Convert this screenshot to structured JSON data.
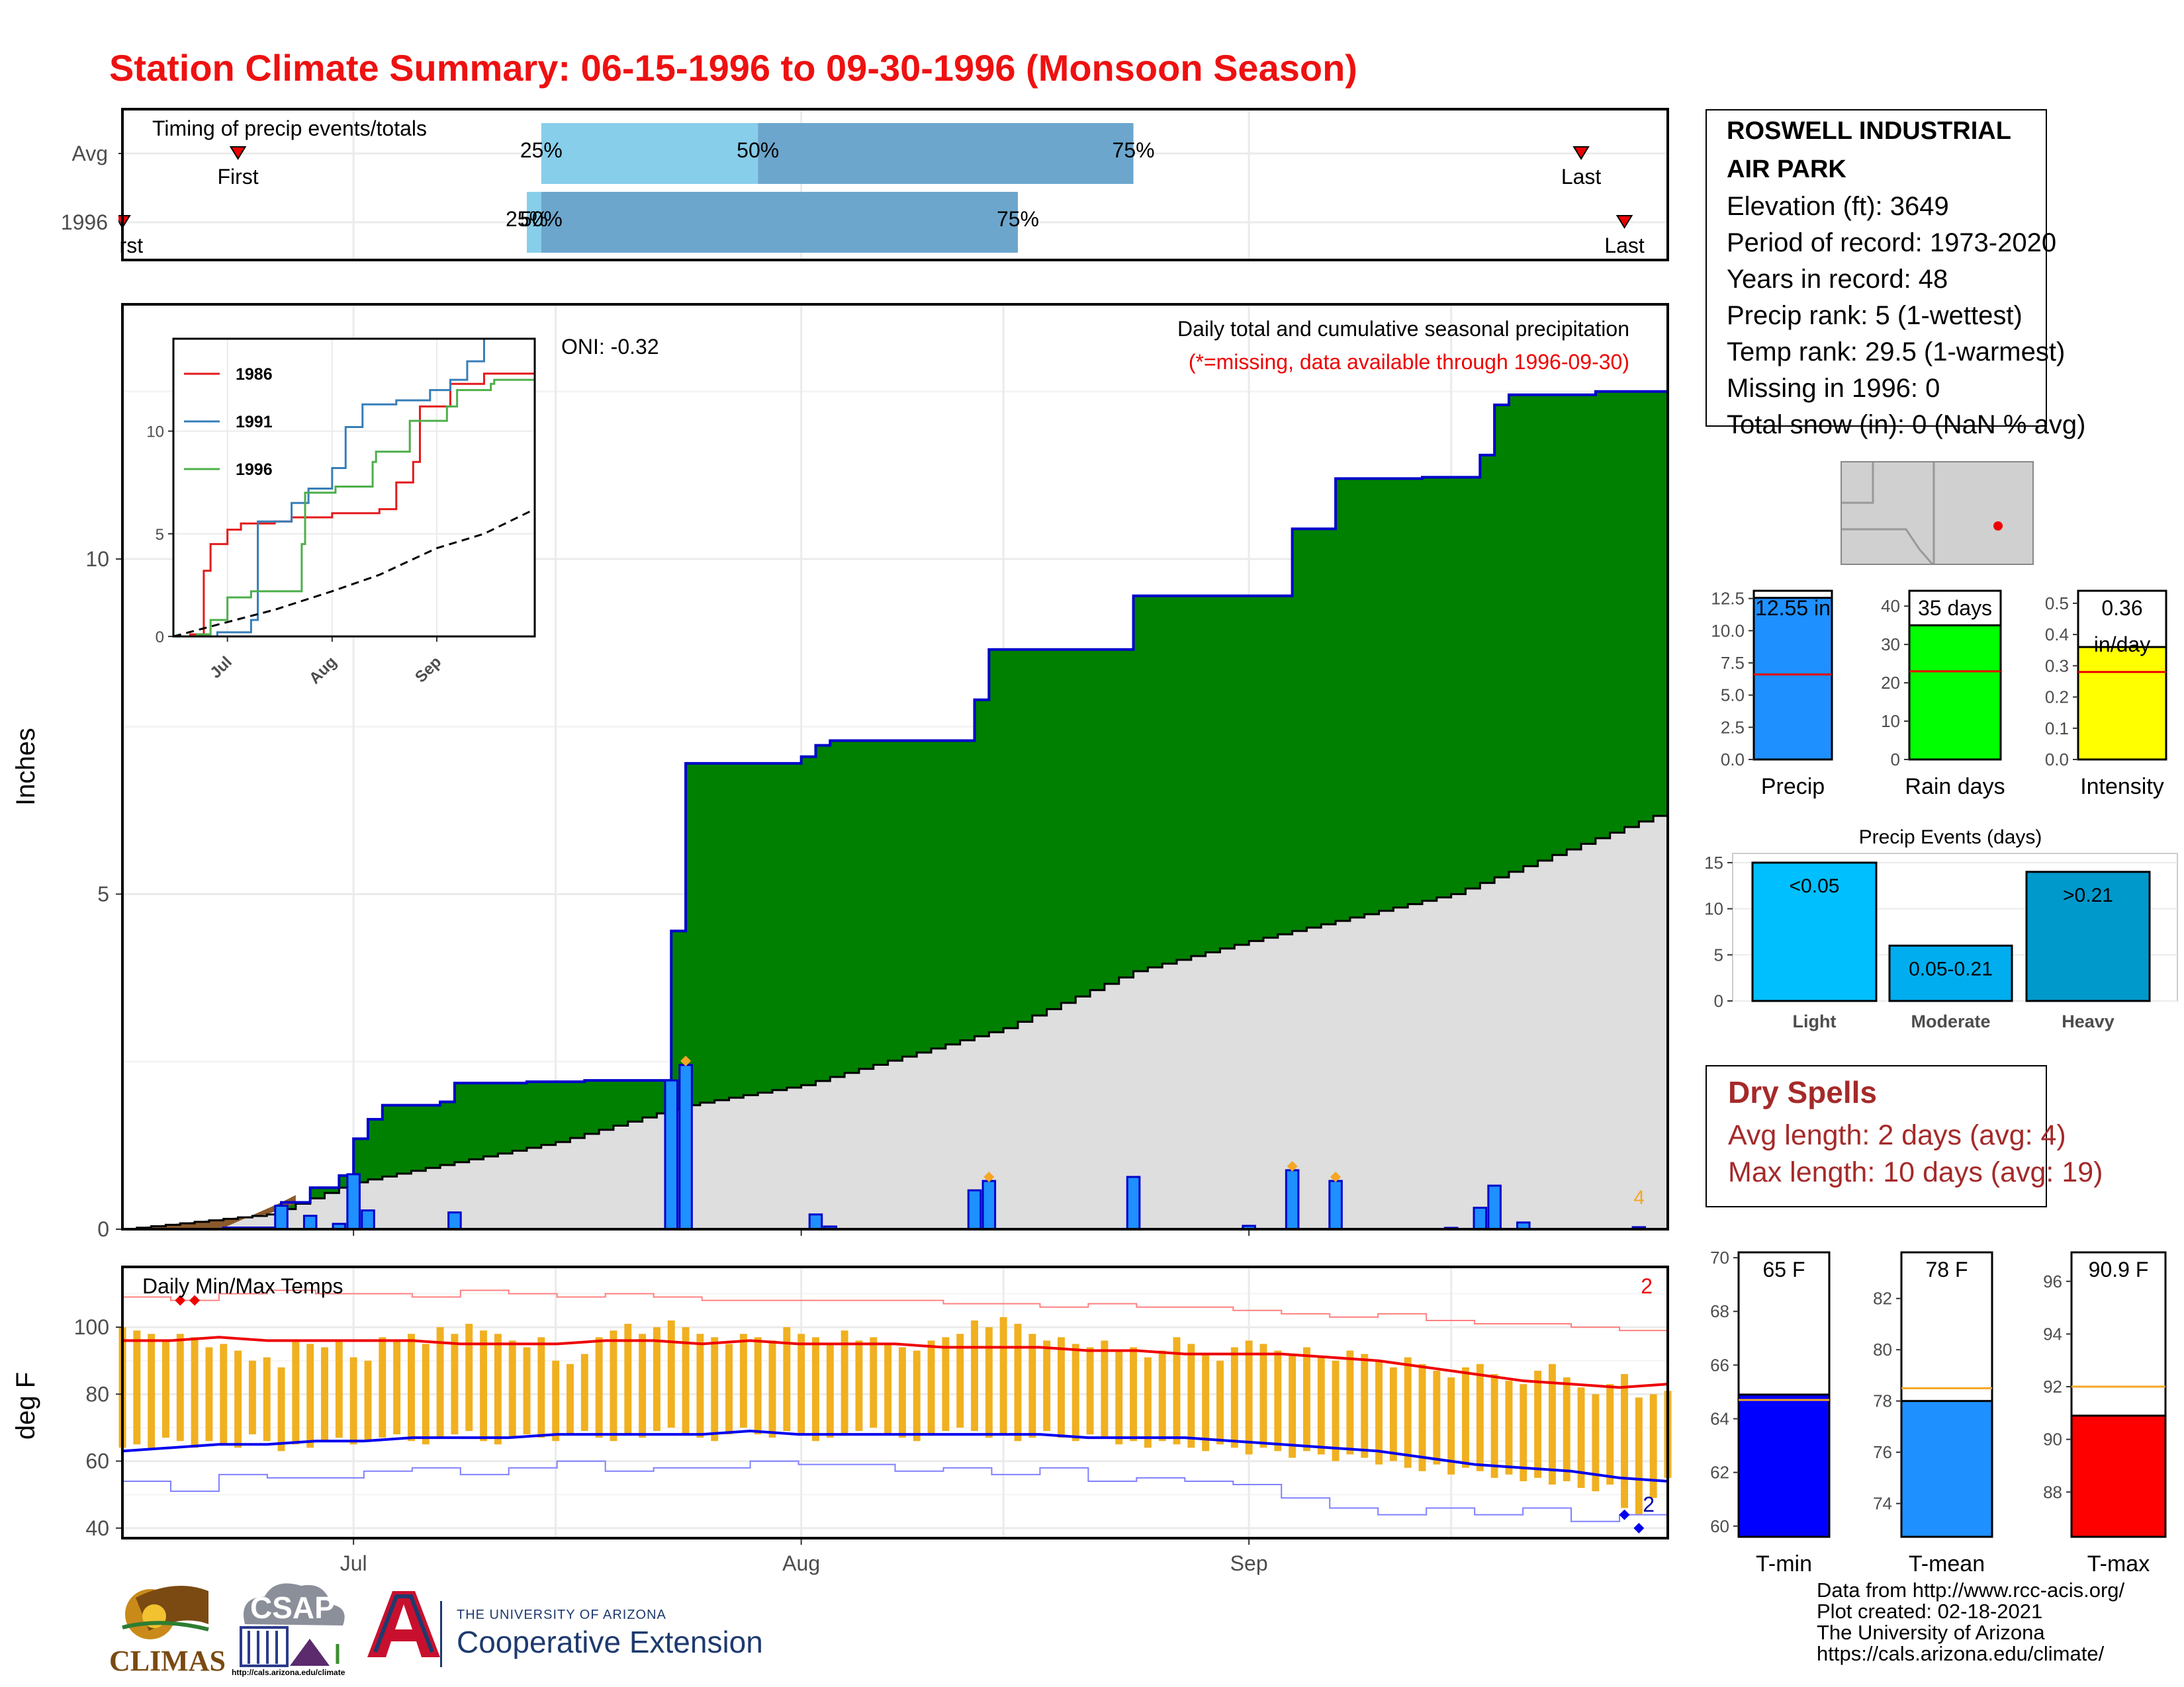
{
  "title": "Station Climate Summary: 06-15-1996 to 09-30-1996 (Monsoon Season)",
  "station": {
    "name": "ROSWELL INDUSTRIAL AIR PARK",
    "lines": [
      "Elevation (ft): 3649",
      "Period of record: 1973-2020",
      "Years in record: 48",
      "Precip rank: 5 (1-wettest)",
      "Temp rank: 29.5 (1-warmest)",
      "Missing in 1996: 0",
      "Total snow (in): 0 (NaN % avg)"
    ]
  },
  "dry_spells": {
    "title": "Dry Spells",
    "avg_length": "Avg length: 2 days (avg: 4)",
    "max_length": "Max length: 10 days (avg: 19)"
  },
  "credits": [
    "Data from http://www.rcc-acis.org/",
    "Plot created: 02-18-2021",
    "The University of Arizona",
    "https://cals.arizona.edu/climate/"
  ],
  "logos": {
    "climas": "CLIMAS",
    "csap": "CSAP",
    "csap_url": "http://cals.arizona.edu/climate",
    "ua_small": "THE UNIVERSITY OF ARIZONA",
    "ua_big": "Cooperative Extension"
  },
  "colors": {
    "title": "#ee1111",
    "precip_fill": "#008000",
    "precip_line": "#0000cc",
    "avg_fill": "#dedede",
    "daily_bar": "#1e90ff",
    "dry_spell_text": "#a52a2a",
    "tmax": "#ee0000",
    "tmin": "#0000ee",
    "temp_range": "#f0b020"
  },
  "chart_data": [
    {
      "id": "timing",
      "type": "bar",
      "title": "Timing of precip events/totals",
      "categories": [
        "Avg",
        "1996"
      ],
      "x_start": "1996-06-15",
      "x_end": "1996-09-30",
      "rows": [
        {
          "name": "Avg",
          "first": "1996-06-23",
          "p25": "1996-07-14",
          "p50": "1996-07-29",
          "p75": "1996-08-24",
          "last": "1996-09-24"
        },
        {
          "name": "1996",
          "first": "1996-06-15",
          "p25": "1996-07-13",
          "p50": "1996-07-14",
          "p75": "1996-08-16",
          "last": "1996-09-27"
        }
      ],
      "labels": {
        "first": "First",
        "last": "Last",
        "p25": "25%",
        "p50": "50%",
        "p75": "75%"
      }
    },
    {
      "id": "cumulative",
      "type": "area",
      "title": "Daily total and cumulative seasonal precipitation",
      "subtitle": "(*=missing, data available through 1996-09-30)",
      "oni": "ONI: -0.32",
      "ylabel": "Inches",
      "ylim": [
        0,
        13.8
      ],
      "yticks": [
        0,
        5,
        10
      ],
      "x_start": "1996-06-15",
      "x_end": "1996-09-30",
      "xticks": [
        "Jul",
        "Aug",
        "Sep"
      ],
      "corner_count": "4",
      "cumulative_1996": [
        {
          "date": "1996-06-15",
          "value": 0.0
        },
        {
          "date": "1996-06-22",
          "value": 0.02
        },
        {
          "date": "1996-06-26",
          "value": 0.4
        },
        {
          "date": "1996-06-28",
          "value": 0.62
        },
        {
          "date": "1996-06-30",
          "value": 0.8
        },
        {
          "date": "1996-07-01",
          "value": 1.35
        },
        {
          "date": "1996-07-02",
          "value": 1.64
        },
        {
          "date": "1996-07-03",
          "value": 1.85
        },
        {
          "date": "1996-07-07",
          "value": 1.9
        },
        {
          "date": "1996-07-08",
          "value": 2.18
        },
        {
          "date": "1996-07-13",
          "value": 2.2
        },
        {
          "date": "1996-07-17",
          "value": 2.22
        },
        {
          "date": "1996-07-23",
          "value": 4.45
        },
        {
          "date": "1996-07-24",
          "value": 6.95
        },
        {
          "date": "1996-08-01",
          "value": 7.05
        },
        {
          "date": "1996-08-02",
          "value": 7.22
        },
        {
          "date": "1996-08-03",
          "value": 7.29
        },
        {
          "date": "1996-08-13",
          "value": 7.9
        },
        {
          "date": "1996-08-14",
          "value": 8.65
        },
        {
          "date": "1996-08-24",
          "value": 9.45
        },
        {
          "date": "1996-09-04",
          "value": 10.45
        },
        {
          "date": "1996-09-07",
          "value": 11.2
        },
        {
          "date": "1996-09-13",
          "value": 11.22
        },
        {
          "date": "1996-09-17",
          "value": 11.55
        },
        {
          "date": "1996-09-18",
          "value": 12.3
        },
        {
          "date": "1996-09-19",
          "value": 12.45
        },
        {
          "date": "1996-09-25",
          "value": 12.5
        },
        {
          "date": "1996-09-30",
          "value": 12.55
        }
      ],
      "cumulative_avg": [
        {
          "date": "1996-06-15",
          "value": 0.0
        },
        {
          "date": "1996-06-25",
          "value": 0.22
        },
        {
          "date": "1996-07-01",
          "value": 0.7
        },
        {
          "date": "1996-07-15",
          "value": 1.3
        },
        {
          "date": "1996-07-24",
          "value": 1.85
        },
        {
          "date": "1996-08-01",
          "value": 2.15
        },
        {
          "date": "1996-08-15",
          "value": 3.0
        },
        {
          "date": "1996-08-24",
          "value": 3.85
        },
        {
          "date": "1996-09-01",
          "value": 4.3
        },
        {
          "date": "1996-09-15",
          "value": 5.0
        },
        {
          "date": "1996-09-30",
          "value": 6.25
        }
      ],
      "daily_1996": [
        {
          "date": "1996-06-26",
          "value": 0.35
        },
        {
          "date": "1996-06-28",
          "value": 0.2
        },
        {
          "date": "1996-06-30",
          "value": 0.08
        },
        {
          "date": "1996-07-01",
          "value": 0.82
        },
        {
          "date": "1996-07-02",
          "value": 0.28
        },
        {
          "date": "1996-07-08",
          "value": 0.25
        },
        {
          "date": "1996-07-23",
          "value": 2.22
        },
        {
          "date": "1996-07-24",
          "value": 2.45
        },
        {
          "date": "1996-08-02",
          "value": 0.22
        },
        {
          "date": "1996-08-03",
          "value": 0.04
        },
        {
          "date": "1996-08-13",
          "value": 0.58
        },
        {
          "date": "1996-08-14",
          "value": 0.72
        },
        {
          "date": "1996-08-24",
          "value": 0.78
        },
        {
          "date": "1996-09-01",
          "value": 0.05
        },
        {
          "date": "1996-09-04",
          "value": 0.88
        },
        {
          "date": "1996-09-07",
          "value": 0.72
        },
        {
          "date": "1996-09-15",
          "value": 0.02
        },
        {
          "date": "1996-09-17",
          "value": 0.32
        },
        {
          "date": "1996-09-18",
          "value": 0.65
        },
        {
          "date": "1996-09-20",
          "value": 0.1
        },
        {
          "date": "1996-09-28",
          "value": 0.03
        }
      ],
      "record_days": [
        "1996-07-24",
        "1996-08-14",
        "1996-09-04",
        "1996-09-07"
      ]
    },
    {
      "id": "inset",
      "type": "line",
      "xticks": [
        "Jul",
        "Aug",
        "Sep"
      ],
      "yticks": [
        0,
        5,
        10
      ],
      "ylim": [
        0,
        14.5
      ],
      "series": [
        {
          "name": "1986",
          "color": "#e41a1c",
          "points": [
            [
              "06-15",
              0
            ],
            [
              "06-20",
              0.1
            ],
            [
              "06-24",
              3.2
            ],
            [
              "06-26",
              4.5
            ],
            [
              "07-01",
              5.2
            ],
            [
              "07-05",
              5.5
            ],
            [
              "07-15",
              5.6
            ],
            [
              "07-20",
              5.8
            ],
            [
              "08-01",
              6.0
            ],
            [
              "08-15",
              6.2
            ],
            [
              "08-20",
              7.5
            ],
            [
              "08-25",
              8.5
            ],
            [
              "08-27",
              11.2
            ],
            [
              "09-05",
              12.3
            ],
            [
              "09-15",
              12.8
            ],
            [
              "09-30",
              13.1
            ]
          ]
        },
        {
          "name": "1991",
          "color": "#377eb8",
          "points": [
            [
              "06-15",
              0
            ],
            [
              "06-28",
              0.2
            ],
            [
              "07-08",
              0.8
            ],
            [
              "07-10",
              5.6
            ],
            [
              "07-20",
              6.5
            ],
            [
              "07-25",
              7.2
            ],
            [
              "08-01",
              8.2
            ],
            [
              "08-05",
              10.2
            ],
            [
              "08-10",
              11.3
            ],
            [
              "08-20",
              11.5
            ],
            [
              "08-30",
              12.0
            ],
            [
              "09-05",
              12.5
            ],
            [
              "09-10",
              13.4
            ],
            [
              "09-15",
              14.5
            ],
            [
              "09-30",
              14.5
            ]
          ]
        },
        {
          "name": "1996",
          "color": "#4daf4a",
          "points": [
            [
              "06-15",
              0
            ],
            [
              "06-22",
              0.1
            ],
            [
              "06-26",
              0.8
            ],
            [
              "07-01",
              1.9
            ],
            [
              "07-08",
              2.2
            ],
            [
              "07-17",
              2.2
            ],
            [
              "07-23",
              4.5
            ],
            [
              "07-24",
              7.0
            ],
            [
              "08-02",
              7.3
            ],
            [
              "08-13",
              8.5
            ],
            [
              "08-14",
              9.0
            ],
            [
              "08-24",
              10.5
            ],
            [
              "09-04",
              11.2
            ],
            [
              "09-07",
              12.0
            ],
            [
              "09-17",
              12.3
            ],
            [
              "09-18",
              12.5
            ],
            [
              "09-30",
              12.6
            ]
          ]
        },
        {
          "name": "",
          "color": "#000000",
          "dashed": true,
          "points": [
            [
              "06-15",
              0
            ],
            [
              "07-01",
              0.7
            ],
            [
              "07-15",
              1.3
            ],
            [
              "08-01",
              2.2
            ],
            [
              "08-15",
              3.0
            ],
            [
              "09-01",
              4.3
            ],
            [
              "09-15",
              5.0
            ],
            [
              "09-30",
              6.2
            ]
          ]
        }
      ]
    },
    {
      "id": "temps",
      "type": "bar",
      "title": "Daily Min/Max Temps",
      "ylabel": "deg F",
      "ylim": [
        37,
        118
      ],
      "yticks": [
        40,
        60,
        80,
        100
      ],
      "xticks": [
        "Jul",
        "Aug",
        "Sep"
      ],
      "record_high_count": "2",
      "record_low_count": "2",
      "avg_max_points": [
        96,
        96,
        97,
        96,
        96,
        96,
        96,
        95,
        95,
        95,
        96,
        96,
        95,
        96,
        95,
        95,
        95,
        94,
        94,
        94,
        93,
        93,
        92,
        92,
        92,
        91,
        90,
        88,
        86,
        84,
        83,
        82,
        83
      ],
      "avg_min_points": [
        63,
        64,
        65,
        65,
        66,
        66,
        67,
        67,
        67,
        68,
        68,
        68,
        68,
        69,
        68,
        68,
        68,
        68,
        68,
        68,
        67,
        67,
        67,
        66,
        65,
        64,
        63,
        61,
        59,
        58,
        57,
        55,
        54
      ],
      "record_max_points": [
        109,
        108,
        110,
        111,
        110,
        110,
        109,
        111,
        110,
        109,
        110,
        109,
        108,
        108,
        108,
        108,
        108,
        107,
        107,
        106,
        107,
        106,
        106,
        105,
        104,
        103,
        104,
        102,
        101,
        101,
        100,
        99,
        99
      ],
      "record_min_points": [
        54,
        51,
        56,
        55,
        55,
        57,
        58,
        56,
        58,
        60,
        57,
        58,
        58,
        60,
        59,
        59,
        57,
        58,
        56,
        58,
        54,
        55,
        54,
        53,
        49,
        46,
        44,
        46,
        44,
        46,
        42,
        44,
        43
      ],
      "daily_highs": [
        100,
        99,
        98,
        96,
        98,
        97,
        94,
        95,
        93,
        90,
        91,
        88,
        96,
        95,
        94,
        96,
        91,
        90,
        97,
        96,
        98,
        95,
        100,
        98,
        101,
        99,
        98,
        96,
        94,
        97,
        90,
        89,
        92,
        97,
        99,
        101,
        98,
        100,
        102,
        100,
        98,
        97,
        95,
        98,
        97,
        96,
        100,
        98,
        97,
        95,
        99,
        96,
        97,
        95,
        94,
        93,
        96,
        97,
        98,
        102,
        100,
        103,
        101,
        98,
        96,
        97,
        95,
        94,
        96,
        93,
        94,
        91,
        93,
        97,
        95,
        92,
        90,
        94,
        96,
        95,
        93,
        92,
        94,
        91,
        90,
        93,
        92,
        90,
        88,
        91,
        89,
        87,
        85,
        88,
        89,
        86,
        84,
        83,
        87,
        89,
        85,
        82,
        80,
        83,
        86,
        79,
        80,
        81
      ],
      "daily_lows": [
        64,
        65,
        64,
        67,
        66,
        64,
        66,
        65,
        64,
        68,
        66,
        63,
        65,
        64,
        66,
        67,
        65,
        66,
        67,
        68,
        66,
        65,
        67,
        68,
        69,
        66,
        65,
        67,
        68,
        67,
        66,
        68,
        69,
        67,
        66,
        68,
        67,
        69,
        70,
        68,
        67,
        66,
        68,
        70,
        68,
        67,
        69,
        68,
        66,
        67,
        68,
        69,
        70,
        68,
        67,
        66,
        68,
        69,
        70,
        69,
        67,
        68,
        66,
        67,
        69,
        67,
        66,
        68,
        67,
        65,
        66,
        64,
        66,
        65,
        64,
        63,
        65,
        64,
        62,
        64,
        63,
        61,
        63,
        62,
        60,
        62,
        61,
        59,
        60,
        58,
        57,
        59,
        56,
        58,
        57,
        55,
        56,
        54,
        55,
        53,
        54,
        52,
        51,
        53,
        46,
        44,
        49,
        55
      ]
    },
    {
      "id": "totals",
      "type": "bar",
      "panels": [
        {
          "name": "Precip",
          "label": "12.55 in",
          "value": 12.55,
          "avg": 6.6,
          "ylim": [
            0,
            13.1
          ],
          "yticks": [
            "0.0",
            "2.5",
            "5.0",
            "7.5",
            "10.0",
            "12.5"
          ],
          "color": "#1e90ff"
        },
        {
          "name": "Rain days",
          "label": "35 days",
          "value": 35,
          "avg": 23,
          "ylim": [
            0,
            44
          ],
          "yticks": [
            "0",
            "10",
            "20",
            "30",
            "40"
          ],
          "color": "#00ff00"
        },
        {
          "name": "Intensity",
          "label": "0.36",
          "label2": "in/day",
          "value": 0.36,
          "avg": 0.28,
          "ylim": [
            0,
            0.54
          ],
          "yticks": [
            "0.0",
            "0.1",
            "0.2",
            "0.3",
            "0.4",
            "0.5"
          ],
          "color": "#ffff00"
        }
      ]
    },
    {
      "id": "events",
      "type": "bar",
      "title": "Precip Events (days)",
      "categories": [
        "Light",
        "Moderate",
        "Heavy"
      ],
      "labels": [
        "<0.05",
        "0.05-0.21",
        ">0.21"
      ],
      "values": [
        15,
        6,
        14
      ],
      "colors": [
        "#00bfff",
        "#00aeef",
        "#0099cc"
      ],
      "ylim": [
        0,
        16
      ],
      "yticks": [
        0,
        5,
        10,
        15
      ]
    },
    {
      "id": "temp_means",
      "type": "bar",
      "panels": [
        {
          "name": "T-min",
          "label": "65 F",
          "value": 64.9,
          "avg": 64.7,
          "ylim": [
            59.6,
            70.2
          ],
          "yticks": [
            60,
            62,
            64,
            66,
            68,
            70
          ],
          "color": "#0000ff"
        },
        {
          "name": "T-mean",
          "label": "78 F",
          "value": 78.0,
          "avg": 78.5,
          "ylim": [
            72.7,
            83.8
          ],
          "yticks": [
            74,
            76,
            78,
            80,
            82
          ],
          "color": "#1e90ff"
        },
        {
          "name": "T-max",
          "label": "90.9 F",
          "value": 90.9,
          "avg": 92.0,
          "ylim": [
            86.3,
            97.1
          ],
          "yticks": [
            88,
            90,
            92,
            94,
            96
          ],
          "color": "#ff0000"
        }
      ]
    }
  ]
}
